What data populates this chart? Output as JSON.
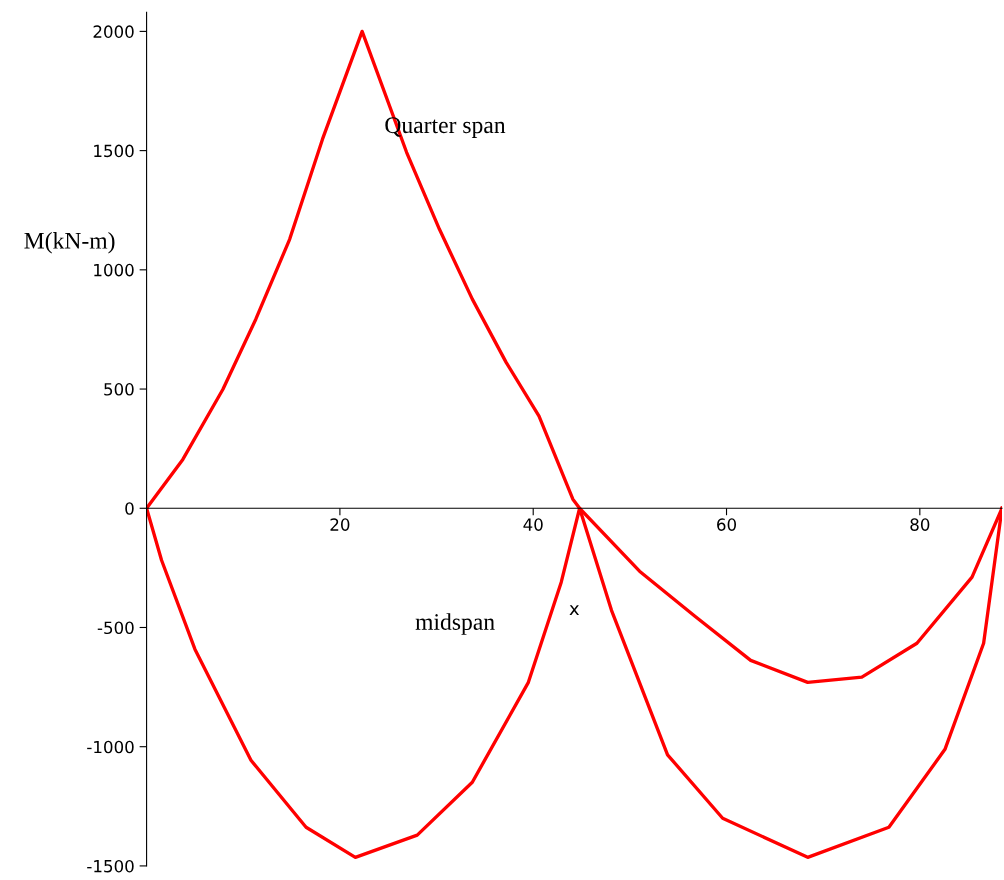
{
  "chart_data": {
    "type": "line",
    "xlabel": "x",
    "ylabel": "M(kN-m)",
    "xlim": [
      0,
      88.5
    ],
    "ylim": [
      -1500,
      2080
    ],
    "xticks": [
      20,
      40,
      60,
      80
    ],
    "yticks": [
      -1500,
      -1000,
      -500,
      0,
      500,
      1000,
      1500,
      2000
    ],
    "grid": false,
    "legend": false,
    "series": [
      {
        "name": "Quarter span",
        "color": "#ff0000",
        "x": [
          0,
          3.75,
          7.9,
          11.3,
          14.8,
          18.2,
          22.3,
          26.9,
          30.3,
          33.7,
          37.2,
          40.6,
          44.1,
          44.8,
          51,
          56.7,
          62.5,
          68.4,
          74,
          79.7,
          85.4,
          88.5
        ],
        "values": [
          0,
          205,
          499,
          793,
          1128,
          1548,
          2000,
          1493,
          1170,
          877,
          612,
          386,
          38,
          0,
          -264,
          -452,
          -638,
          -730,
          -708,
          -566,
          -289,
          0
        ]
      },
      {
        "name": "midspan",
        "color": "#ff0000",
        "x": [
          0,
          1.55,
          5,
          10.8,
          16.5,
          21.6,
          28,
          33.7,
          39.5,
          42.9,
          44.8,
          48.1,
          53.9,
          59.6,
          68.4,
          76.8,
          82.6,
          86.6,
          88.5
        ],
        "values": [
          0,
          -218,
          -591,
          -1057,
          -1338,
          -1464,
          -1371,
          -1149,
          -730,
          -310,
          0,
          -428,
          -1034,
          -1300,
          -1464,
          -1338,
          -1011,
          -566,
          0
        ]
      }
    ]
  }
}
